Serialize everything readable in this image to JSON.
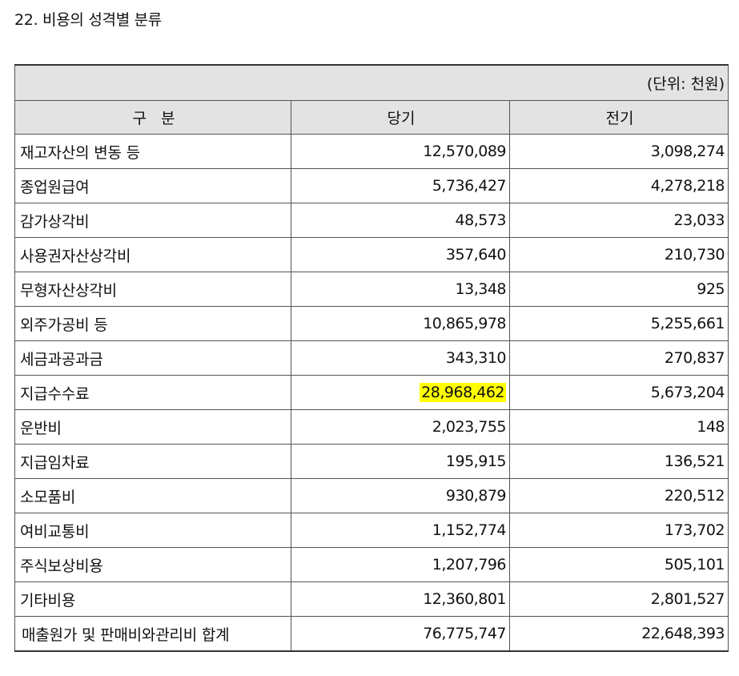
{
  "title": "22. 비용의 성격별 분류",
  "table": {
    "unit": "(단위: 천원)",
    "headers": [
      "구   분",
      "당기",
      "전기"
    ],
    "rows": [
      {
        "label": "재고자산의 변동 등",
        "current": "12,570,089",
        "prior": "3,098,274"
      },
      {
        "label": "종업원급여",
        "current": "5,736,427",
        "prior": "4,278,218"
      },
      {
        "label": "감가상각비",
        "current": "48,573",
        "prior": "23,033"
      },
      {
        "label": "사용권자산상각비",
        "current": "357,640",
        "prior": "210,730"
      },
      {
        "label": "무형자산상각비",
        "current": "13,348",
        "prior": "925"
      },
      {
        "label": "외주가공비 등",
        "current": "10,865,978",
        "prior": "5,255,661"
      },
      {
        "label": "세금과공과금",
        "current": "343,310",
        "prior": "270,837"
      },
      {
        "label": "지급수수료",
        "current": "28,968,462",
        "prior": "5,673,204"
      },
      {
        "label": "운반비",
        "current": "2,023,755",
        "prior": "148"
      },
      {
        "label": "지급임차료",
        "current": "195,915",
        "prior": "136,521"
      },
      {
        "label": "소모품비",
        "current": "930,879",
        "prior": "220,512"
      },
      {
        "label": "여비교통비",
        "current": "1,152,774",
        "prior": "173,702"
      },
      {
        "label": "주식보상비용",
        "current": "1,207,796",
        "prior": "505,101"
      },
      {
        "label": "기타비용",
        "current": "12,360,801",
        "prior": "2,801,527"
      },
      {
        "label": "매출원가 및 판매비와관리비 합계",
        "current": "76,775,747",
        "prior": "22,648,393"
      }
    ]
  },
  "colors": {
    "header_bg": "#e3e3e3",
    "highlight": "#ffff00",
    "border": "#555555"
  }
}
